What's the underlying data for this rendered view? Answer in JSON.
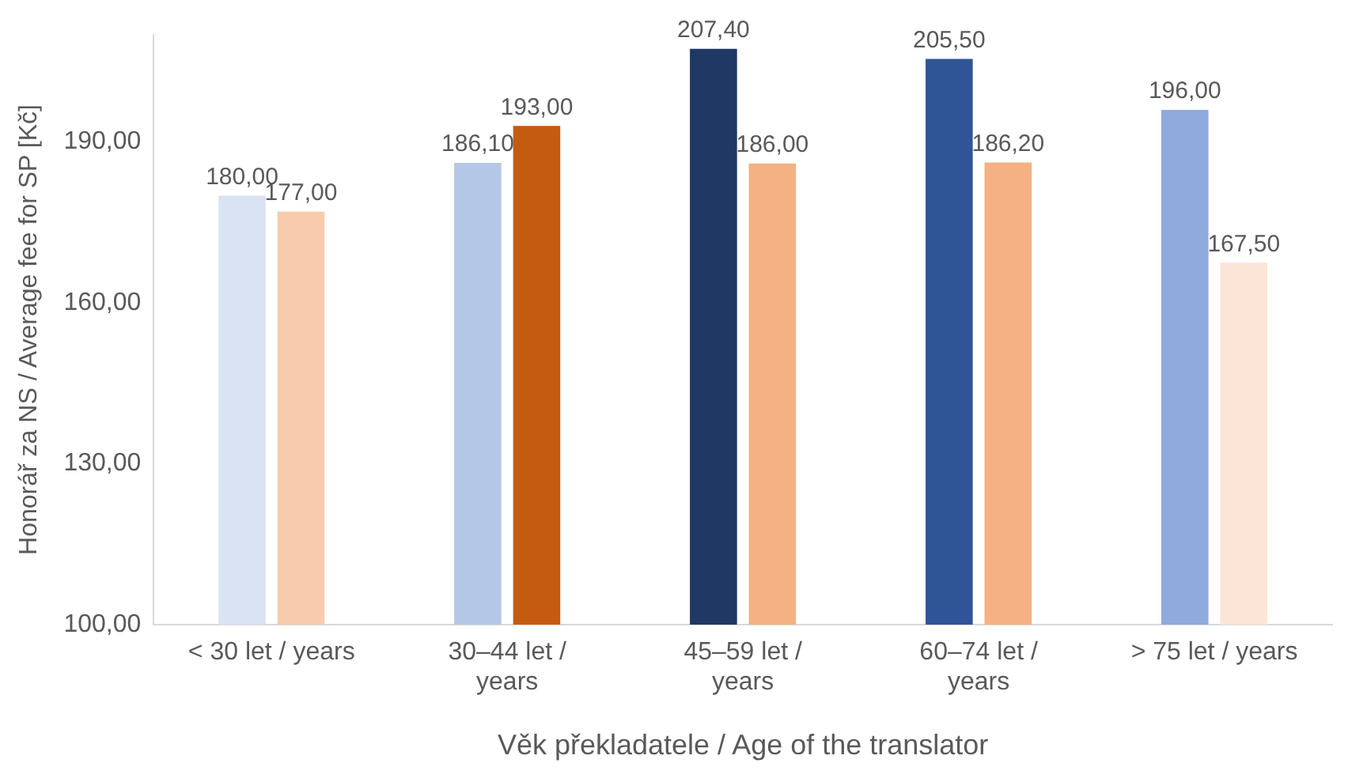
{
  "chart_data": {
    "type": "bar",
    "xlabel": "Věk překladatele / Age of the translator",
    "ylabel": "Honorář za NS / Average fee for SP [Kč]",
    "categories": [
      "< 30 let / years",
      "30–44 let / years",
      "45–59 let / years",
      "60–74 let / years",
      "> 75 let / years"
    ],
    "series": [
      {
        "colors": [
          "#dae3f3",
          "#b4c7e7",
          "#203864",
          "#2f5597",
          "#8faadc"
        ],
        "values": [
          180,
          186.1,
          207.4,
          205.5,
          196
        ],
        "value_labels": [
          "180,00",
          "186,10",
          "207,40",
          "205,50",
          "196,00"
        ]
      },
      {
        "colors": [
          "#f8cbad",
          "#c55a11",
          "#f4b183",
          "#f4b183",
          "#fbe5d6"
        ],
        "values": [
          177,
          193,
          186,
          186.2,
          167.5
        ],
        "value_labels": [
          "177,00",
          "193,00",
          "186,00",
          "186,20",
          "167,50"
        ]
      }
    ],
    "ylim": [
      100,
      210
    ],
    "yticks": [
      {
        "value": 100,
        "label": "100,00"
      },
      {
        "value": 130,
        "label": "130,00"
      },
      {
        "value": 160,
        "label": "160,00"
      },
      {
        "value": 190,
        "label": "190,00"
      }
    ],
    "grid": false,
    "legend": false
  }
}
